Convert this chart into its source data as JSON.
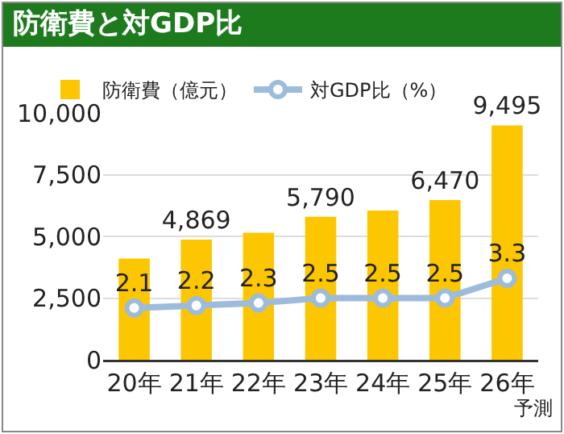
{
  "chart_data": {
    "type": "bar",
    "title": "防衛費と対GDP比",
    "categories": [
      "20年",
      "21年",
      "22年",
      "23年",
      "24年",
      "25年",
      "26年"
    ],
    "series": [
      {
        "name": "防衛費（億元）",
        "color": "#fcc600",
        "values": [
          4100,
          4869,
          5150,
          5790,
          6050,
          6470,
          9495
        ],
        "value_labels": [
          null,
          "4,869",
          null,
          "5,790",
          null,
          "6,470",
          "9,495"
        ]
      },
      {
        "name": "対GDP比（%）",
        "type": "line",
        "axis": "y2",
        "color": "#9dbcdb",
        "values": [
          2.1,
          2.2,
          2.3,
          2.5,
          2.5,
          2.5,
          3.3
        ],
        "value_labels": [
          "2.1",
          "2.2",
          "2.3",
          "2.5",
          "2.5",
          "2.5",
          "3.3"
        ]
      }
    ],
    "ylim": [
      0,
      10000
    ],
    "yticks": [
      0,
      {
        "value": 2500,
        "label": "2,500"
      },
      {
        "value": 5000,
        "label": "5,000"
      },
      {
        "value": 7500,
        "label": "7,500"
      },
      {
        "value": 10000,
        "label": "10,000"
      }
    ],
    "grid": "y",
    "legend": "top",
    "marker": "circle",
    "line_style": "solid",
    "tick_labels": "xy",
    "annotations": [
      "予測"
    ]
  }
}
